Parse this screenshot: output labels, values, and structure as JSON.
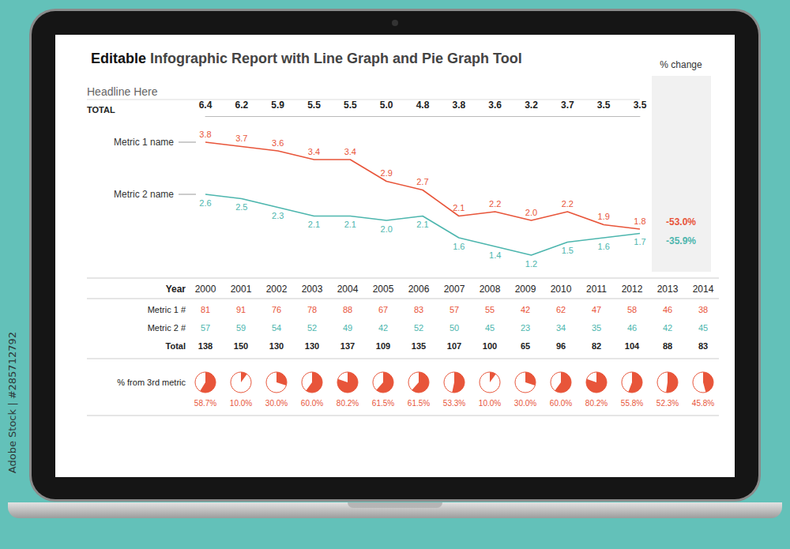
{
  "header": {
    "bold": "Editable",
    "text": "Infographic Report with Line Graph and Pie Graph Tool"
  },
  "side_text": "Adobe Stock | #285712792",
  "chart_data": [
    {
      "type": "line",
      "title": "Headline Here",
      "categories": [
        null,
        null,
        null,
        null,
        null,
        null,
        null,
        null,
        null,
        null,
        null,
        null,
        null
      ],
      "totals_label": "TOTAL",
      "totals": [
        "6.4",
        "6.2",
        "5.9",
        "5.5",
        "5.5",
        "5.0",
        "4.8",
        "3.8",
        "3.6",
        "3.2",
        "3.7",
        "3.5",
        "3.5"
      ],
      "change_title": "% change",
      "series": [
        {
          "name": "Metric 1 name",
          "color": "#e8553a",
          "values": [
            3.8,
            3.7,
            3.6,
            3.4,
            3.4,
            2.9,
            2.7,
            2.1,
            2.2,
            2.0,
            2.2,
            1.9,
            1.8
          ],
          "value_labels": [
            "3.8",
            "3.7",
            "3.6",
            "3.4",
            "3.4",
            "2.9",
            "2.7",
            "2.1",
            "2.2",
            "2.0",
            "2.2",
            "1.9",
            "1.8"
          ],
          "change_label": "-53.0%"
        },
        {
          "name": "Metric 2 name",
          "color": "#4db6ae",
          "values": [
            2.6,
            2.5,
            2.3,
            2.1,
            2.1,
            2.0,
            2.1,
            1.6,
            1.4,
            1.2,
            1.5,
            1.6,
            1.7
          ],
          "value_labels": [
            "2.6",
            "2.5",
            "2.3",
            "2.1",
            "2.1",
            "2.0",
            "2.1",
            "1.6",
            "1.4",
            "1.2",
            "1.5",
            "1.6",
            "1.7"
          ],
          "change_label": "-35.9%"
        }
      ],
      "ylim": [
        1,
        4
      ],
      "grid": false,
      "tick_labels": false,
      "data_labels": true,
      "marker": "none"
    },
    {
      "type": "pie",
      "title": "% from 3rd metric",
      "values": [
        58.7,
        10.0,
        30.0,
        60.0,
        80.2,
        61.5,
        61.5,
        53.3,
        10.0,
        30.0,
        60.0,
        80.2,
        55.8,
        52.3,
        45.8
      ],
      "value_labels": [
        "58.7%",
        "10.0%",
        "30.0%",
        "60.0%",
        "80.2%",
        "61.5%",
        "61.5%",
        "53.3%",
        "10.0%",
        "30.0%",
        "60.0%",
        "80.2%",
        "55.8%",
        "52.3%",
        "45.8%"
      ],
      "color": "#e8553a",
      "ylim": [
        0,
        100
      ],
      "data_labels": true
    }
  ],
  "table": {
    "header": "Year",
    "columns": [
      2000,
      2001,
      2002,
      2003,
      2004,
      2005,
      2006,
      2007,
      2008,
      2009,
      2010,
      2011,
      2012,
      2013,
      2014
    ],
    "rows": [
      {
        "label": "Metric 1 #",
        "color": "#e8553a",
        "values": [
          81,
          91,
          76,
          78,
          88,
          67,
          83,
          57,
          55,
          42,
          62,
          47,
          58,
          46,
          38
        ]
      },
      {
        "label": "Metric 2 #",
        "color": "#4db6ae",
        "values": [
          57,
          59,
          54,
          52,
          49,
          42,
          52,
          50,
          45,
          23,
          34,
          35,
          46,
          42,
          45
        ]
      },
      {
        "label": "Total",
        "values": [
          138,
          150,
          130,
          130,
          137,
          109,
          135,
          107,
          100,
          65,
          96,
          82,
          104,
          88,
          83
        ]
      }
    ]
  }
}
